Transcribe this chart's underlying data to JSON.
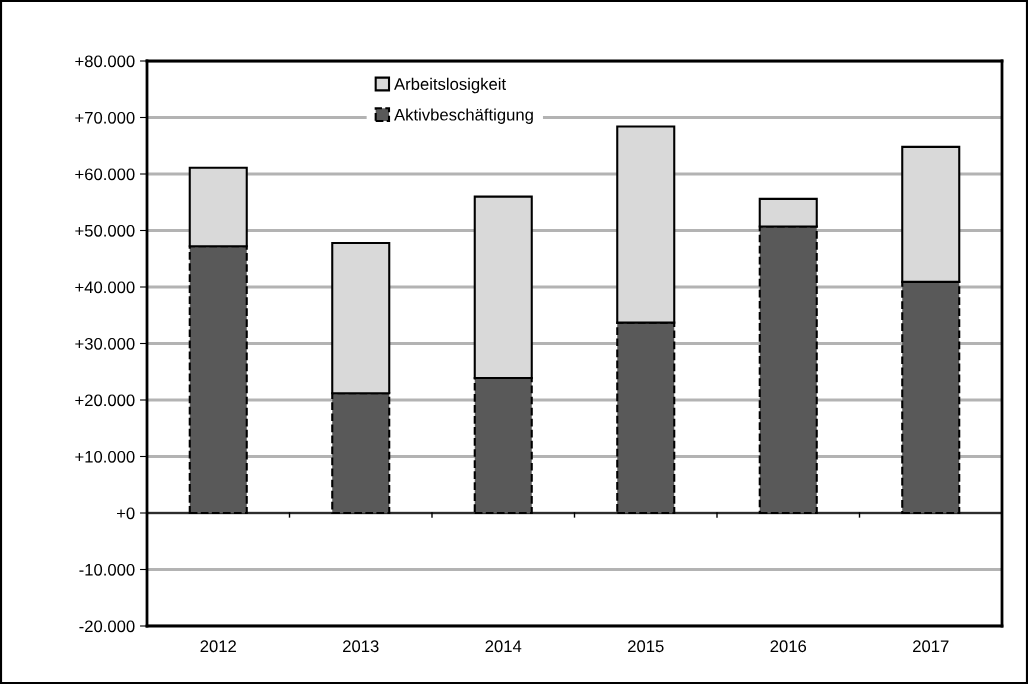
{
  "chart_data": {
    "type": "bar",
    "stacked": true,
    "categories": [
      "2012",
      "2013",
      "2014",
      "2015",
      "2016",
      "2017"
    ],
    "series": [
      {
        "name": "Aktivbeschäftigung",
        "color": "#595959",
        "line_style": "dashed",
        "values": [
          47200,
          21200,
          23900,
          33700,
          50700,
          40900
        ]
      },
      {
        "name": "Arbeitslosigkeit",
        "color": "#d9d9d9",
        "line_style": "solid",
        "values": [
          13900,
          26600,
          32100,
          34700,
          4900,
          23900
        ]
      }
    ],
    "ylim": [
      -20000,
      80000
    ],
    "yticks": [
      {
        "value": -20000,
        "label": "-20.000"
      },
      {
        "value": -10000,
        "label": "-10.000"
      },
      {
        "value": 0,
        "label": "+0"
      },
      {
        "value": 10000,
        "label": "+10.000"
      },
      {
        "value": 20000,
        "label": "+20.000"
      },
      {
        "value": 30000,
        "label": "+30.000"
      },
      {
        "value": 40000,
        "label": "+40.000"
      },
      {
        "value": 50000,
        "label": "+50.000"
      },
      {
        "value": 60000,
        "label": "+60.000"
      },
      {
        "value": 70000,
        "label": "+70.000"
      },
      {
        "value": 80000,
        "label": "+80.000"
      }
    ],
    "ref_lines": [
      {
        "axis": "y",
        "value": 0,
        "color": "#000000"
      }
    ],
    "grid": "y",
    "legend": "top"
  }
}
